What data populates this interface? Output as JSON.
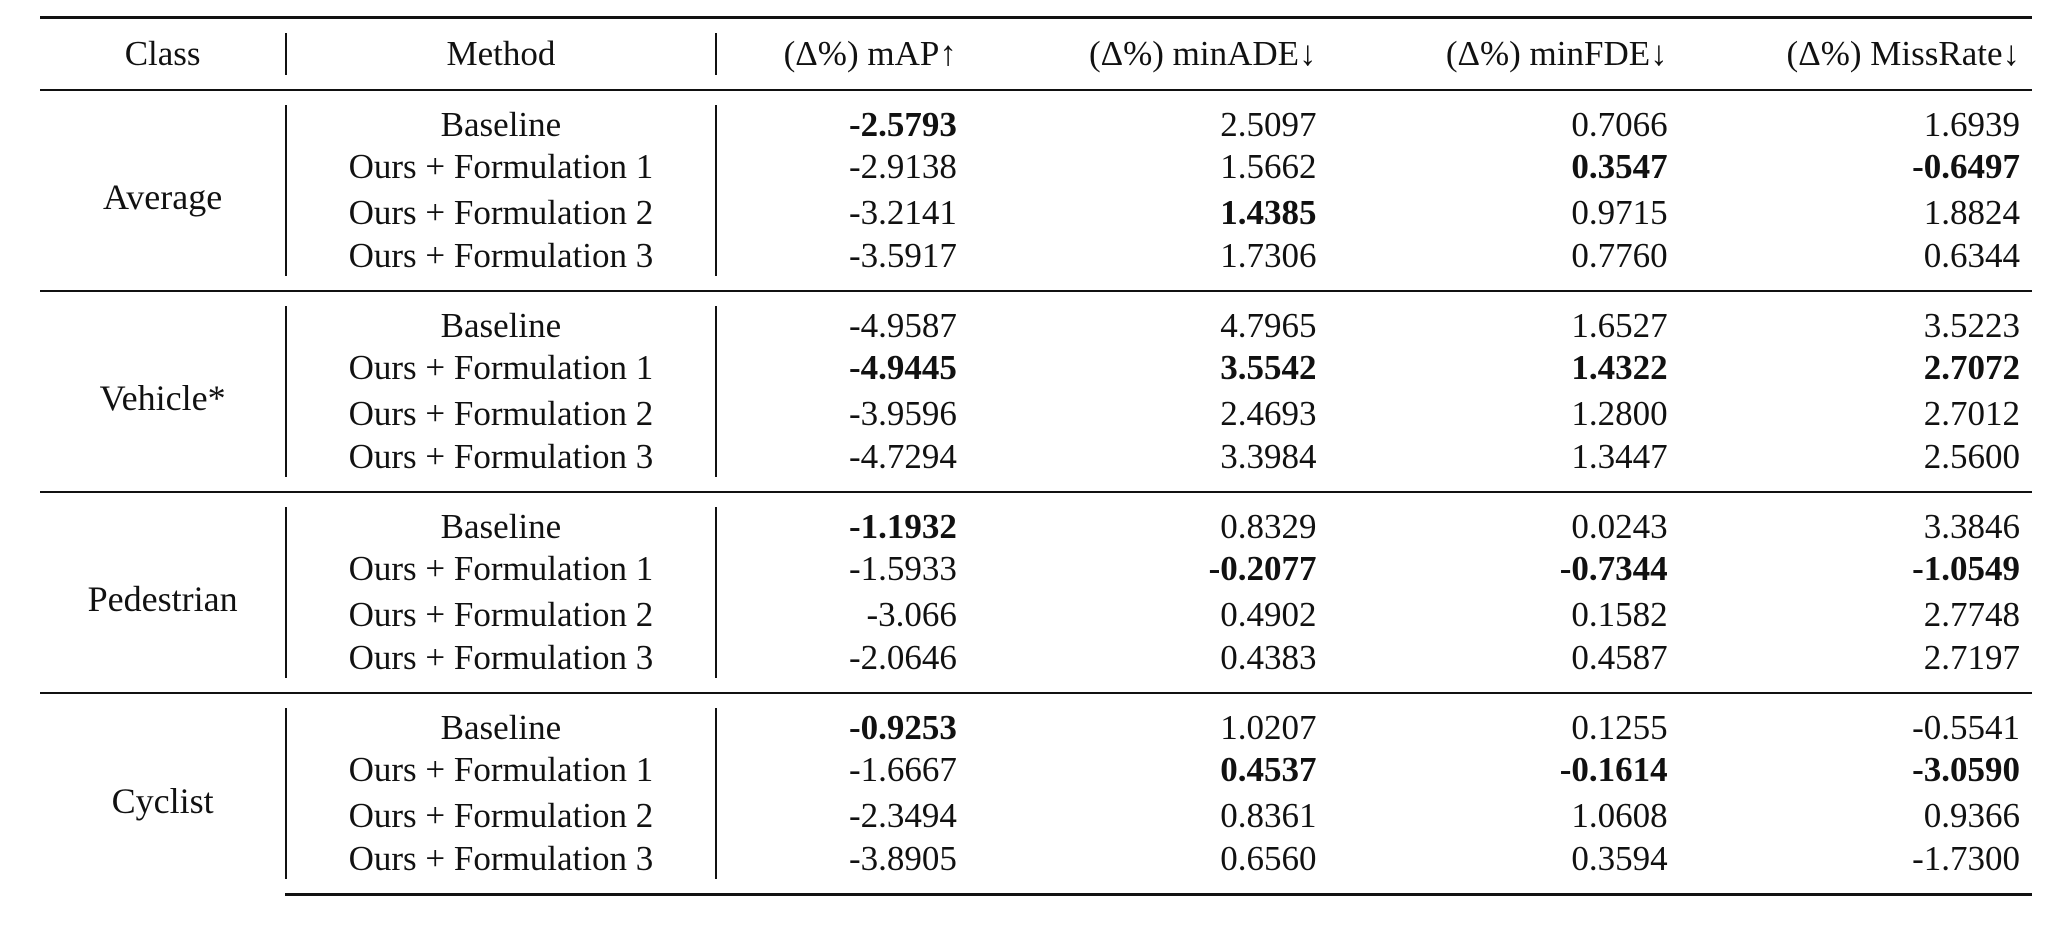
{
  "table": {
    "headers": {
      "class": "Class",
      "method": "Method",
      "map": "(Δ%) mAP↑",
      "minade": "(Δ%) minADE↓",
      "minfde": "(Δ%) minFDE↓",
      "missrate": "(Δ%) MissRate↓"
    },
    "groups": [
      {
        "class": "Average",
        "rows": [
          {
            "method": "Baseline",
            "map": "-2.5793",
            "minade": "2.5097",
            "minfde": "0.7066",
            "missrate": "1.6939"
          },
          {
            "method": "Ours + Formulation 1",
            "map": "-2.9138",
            "minade": "1.5662",
            "minfde": "0.3547",
            "missrate": "-0.6497"
          },
          {
            "method": "Ours + Formulation 2",
            "map": "-3.2141",
            "minade": "1.4385",
            "minfde": "0.9715",
            "missrate": "1.8824"
          },
          {
            "method": "Ours + Formulation 3",
            "map": "-3.5917",
            "minade": "1.7306",
            "minfde": "0.7760",
            "missrate": "0.6344"
          }
        ]
      },
      {
        "class": "Vehicle*",
        "rows": [
          {
            "method": "Baseline",
            "map": "-4.9587",
            "minade": "4.7965",
            "minfde": "1.6527",
            "missrate": "3.5223"
          },
          {
            "method": "Ours + Formulation 1",
            "map": "-4.9445",
            "minade": "3.5542",
            "minfde": "1.4322",
            "missrate": "2.7072"
          },
          {
            "method": "Ours + Formulation 2",
            "map": "-3.9596",
            "minade": "2.4693",
            "minfde": "1.2800",
            "missrate": "2.7012"
          },
          {
            "method": "Ours + Formulation 3",
            "map": "-4.7294",
            "minade": "3.3984",
            "minfde": "1.3447",
            "missrate": "2.5600"
          }
        ]
      },
      {
        "class": "Pedestrian",
        "rows": [
          {
            "method": "Baseline",
            "map": "-1.1932",
            "minade": "0.8329",
            "minfde": "0.0243",
            "missrate": "3.3846"
          },
          {
            "method": "Ours + Formulation 1",
            "map": "-1.5933",
            "minade": "-0.2077",
            "minfde": "-0.7344",
            "missrate": "-1.0549"
          },
          {
            "method": "Ours + Formulation 2",
            "map": "-3.066",
            "minade": "0.4902",
            "minfde": "0.1582",
            "missrate": "2.7748"
          },
          {
            "method": "Ours + Formulation 3",
            "map": "-2.0646",
            "minade": "0.4383",
            "minfde": "0.4587",
            "missrate": "2.7197"
          }
        ]
      },
      {
        "class": "Cyclist",
        "rows": [
          {
            "method": "Baseline",
            "map": "-0.9253",
            "minade": "1.0207",
            "minfde": "0.1255",
            "missrate": "-0.5541"
          },
          {
            "method": "Ours + Formulation 1",
            "map": "-1.6667",
            "minade": "0.4537",
            "minfde": "-0.1614",
            "missrate": "-3.0590"
          },
          {
            "method": "Ours + Formulation 2",
            "map": "-2.3494",
            "minade": "0.8361",
            "minfde": "1.0608",
            "missrate": "0.9366"
          },
          {
            "method": "Ours + Formulation 3",
            "map": "-3.8905",
            "minade": "0.6560",
            "minfde": "0.3594",
            "missrate": "-1.7300"
          }
        ]
      }
    ]
  }
}
